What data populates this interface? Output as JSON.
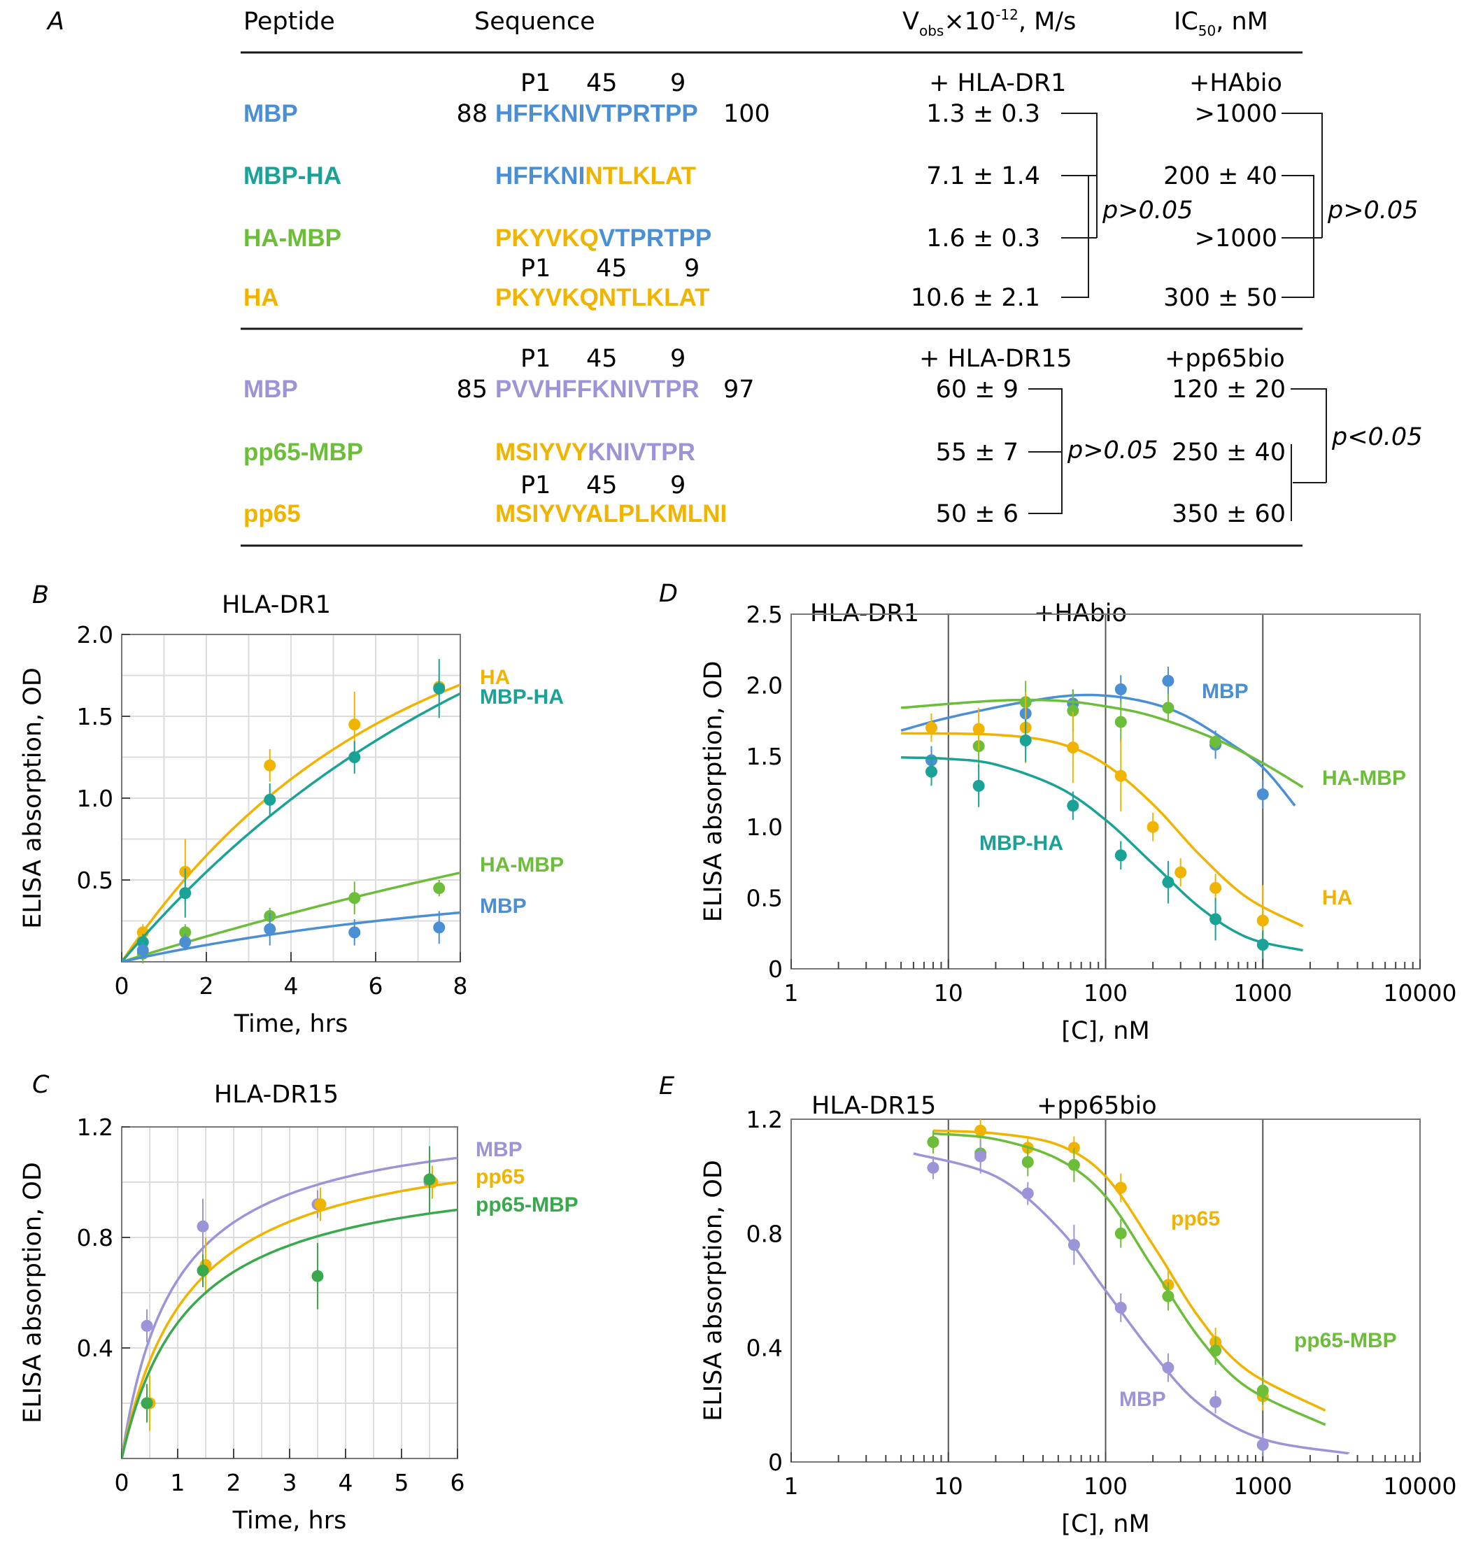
{
  "colors": {
    "mbp_blue": "#4a8fd4",
    "teal": "#1aa296",
    "green": "#6cbd3a",
    "green_dark": "#3aa84c",
    "yellow": "#f0b400",
    "lavender": "#9b95d8",
    "text": "#1a1a1a",
    "grid": "#dcdcdc"
  },
  "panel_a": {
    "letter": "A",
    "headers": {
      "peptide": "Peptide",
      "sequence": "Sequence",
      "vobs_pre": "V",
      "vobs_sub": "obs",
      "vobs_mid": "×10",
      "vobs_sup": "-12",
      "vobs_post": ", M/s",
      "ic50_pre": "IC",
      "ic50_sub": "50",
      "ic50_post": ", nM"
    },
    "top": {
      "anchors_1": {
        "p1": "P1",
        "p45": "45",
        "p9": "9"
      },
      "anchors_2": {
        "p1": "P1",
        "p45": "45",
        "p9": "9"
      },
      "vobs_header": "+ HLA-DR1",
      "ic50_header": "+HAbio",
      "rows": [
        {
          "name": "MBP",
          "color": "#4a8fd4",
          "start": "88",
          "end": "100",
          "seq_a": "HFFKNIVTPRTPP",
          "seq_a_color": "#4a8fd4",
          "seq_b": "",
          "seq_b_color": "#f0b400",
          "vobs": "1.3 ± 0.3",
          "ic50": ">1000"
        },
        {
          "name": "MBP-HA",
          "color": "#1aa296",
          "start": "",
          "end": "",
          "seq_a": "HFFKNI",
          "seq_a_color": "#4a8fd4",
          "seq_b": "NTLKLAT",
          "seq_b_color": "#f0b400",
          "vobs": "7.1 ± 1.4",
          "ic50": "200 ± 40"
        },
        {
          "name": "HA-MBP",
          "color": "#6cbd3a",
          "start": "",
          "end": "",
          "seq_a": "PKYVKQ",
          "seq_a_color": "#f0b400",
          "seq_b": "VTPRTPP",
          "seq_b_color": "#4a8fd4",
          "vobs": "1.6 ± 0.3",
          "ic50": ">1000"
        },
        {
          "name": "HA",
          "color": "#f0b400",
          "start": "",
          "end": "",
          "seq_a": "PKYVKQNTLKLAT",
          "seq_a_color": "#f0b400",
          "seq_b": "",
          "seq_b_color": "#f0b400",
          "vobs": "10.6 ± 2.1",
          "ic50": "300 ± 50"
        }
      ],
      "stat_vobs": "p>0.05",
      "stat_ic50": "p>0.05"
    },
    "bottom": {
      "anchors_1": {
        "p1": "P1",
        "p45": "45",
        "p9": "9"
      },
      "anchors_2": {
        "p1": "P1",
        "p45": "45",
        "p9": "9"
      },
      "vobs_header": "+ HLA-DR15",
      "ic50_header": "+pp65bio",
      "rows": [
        {
          "name": "MBP",
          "color": "#9b95d8",
          "start": "85",
          "end": "97",
          "seq_a": "PVVHFFKNIVTPR",
          "seq_a_color": "#9b95d8",
          "seq_b": "",
          "seq_b_color": "#f0b400",
          "vobs": "60 ± 9",
          "ic50": "120 ± 20"
        },
        {
          "name": "pp65-MBP",
          "color": "#6cbd3a",
          "start": "",
          "end": "",
          "seq_a": "MSIYVY",
          "seq_a_color": "#f0b400",
          "seq_b": "KNIVTPR",
          "seq_b_color": "#9b95d8",
          "vobs": "55 ± 7",
          "ic50": "250 ± 40"
        },
        {
          "name": "pp65",
          "color": "#f0b400",
          "start": "",
          "end": "",
          "seq_a": "MSIYVYALPLKMLNI",
          "seq_a_color": "#f0b400",
          "seq_b": "",
          "seq_b_color": "#f0b400",
          "vobs": "50 ± 6",
          "ic50": "350 ± 60"
        }
      ],
      "stat_vobs": "p>0.05",
      "stat_ic50": "p<0.05"
    }
  },
  "chart_data": [
    {
      "panel": "B",
      "type": "scatter",
      "title": "HLA-DR1",
      "xlabel": "Time, hrs",
      "ylabel": "ELISA absorption, OD",
      "xlim": [
        0,
        8
      ],
      "ylim": [
        0,
        2.0
      ],
      "xticks": [
        0,
        2,
        4,
        6,
        8
      ],
      "yticks": [
        0.5,
        1.0,
        1.5,
        2.0
      ],
      "ytick_labels": [
        "0.5",
        "1.0",
        "1.5",
        "2.0"
      ],
      "xscale": "linear",
      "grid": true,
      "series": [
        {
          "name": "HA",
          "color": "#f0b400",
          "x": [
            0.5,
            1.5,
            3.5,
            5.5,
            7.5
          ],
          "y": [
            0.18,
            0.55,
            1.2,
            1.45,
            1.68
          ],
          "err": [
            0.05,
            0.2,
            0.1,
            0.2,
            0.05
          ],
          "fit": {
            "kind": "exp",
            "A": 2.31,
            "k": 0.165
          }
        },
        {
          "name": "MBP-HA",
          "color": "#1aa296",
          "x": [
            0.5,
            1.5,
            3.5,
            5.5,
            7.5
          ],
          "y": [
            0.12,
            0.42,
            0.99,
            1.25,
            1.67
          ],
          "err": [
            0.05,
            0.15,
            0.1,
            0.1,
            0.18
          ],
          "fit": {
            "kind": "exp",
            "A": 2.85,
            "k": 0.107
          }
        },
        {
          "name": "HA-MBP",
          "color": "#6cbd3a",
          "x": [
            0.5,
            1.5,
            3.5,
            5.5,
            7.5
          ],
          "y": [
            0.05,
            0.18,
            0.28,
            0.39,
            0.45
          ],
          "err": [
            0.06,
            0.05,
            0.05,
            0.1,
            0.05
          ],
          "fit": {
            "kind": "exp",
            "A": 1.8,
            "k": 0.045
          }
        },
        {
          "name": "MBP",
          "color": "#4a8fd4",
          "x": [
            0.5,
            1.5,
            3.5,
            5.5,
            7.5
          ],
          "y": [
            0.07,
            0.12,
            0.2,
            0.18,
            0.21
          ],
          "err": [
            0.05,
            0.05,
            0.1,
            0.08,
            0.1
          ],
          "fit": {
            "kind": "exp",
            "A": 0.5,
            "k": 0.115
          }
        }
      ]
    },
    {
      "panel": "C",
      "type": "scatter",
      "title": "HLA-DR15",
      "xlabel": "Time, hrs",
      "ylabel": "ELISA absorption, OD",
      "xlim": [
        0,
        6
      ],
      "ylim": [
        0,
        1.2
      ],
      "xticks": [
        0,
        1,
        2,
        3,
        4,
        5,
        6
      ],
      "yticks": [
        0.4,
        0.8,
        1.2
      ],
      "ytick_labels": [
        "0.4",
        "0.8",
        "1.2"
      ],
      "xscale": "linear",
      "grid": true,
      "series": [
        {
          "name": "MBP",
          "color": "#9b95d8",
          "x": [
            0.45,
            1.45,
            3.5,
            5.5
          ],
          "y": [
            0.48,
            0.84,
            0.92,
            1.0
          ],
          "err": [
            0.06,
            0.1,
            0.05,
            0.05
          ],
          "fit": {
            "kind": "hyper",
            "A": 1.26,
            "K": 0.95
          }
        },
        {
          "name": "pp65",
          "color": "#f0b400",
          "x": [
            0.5,
            1.5,
            3.55,
            5.55
          ],
          "y": [
            0.2,
            0.7,
            0.92,
            1.0
          ],
          "err": [
            0.1,
            0.1,
            0.06,
            0.06
          ],
          "fit": {
            "kind": "hyper",
            "A": 1.2,
            "K": 1.2
          }
        },
        {
          "name": "pp65-MBP",
          "color": "#3aa84c",
          "x": [
            0.45,
            1.45,
            3.5,
            5.5
          ],
          "y": [
            0.2,
            0.68,
            0.66,
            1.01
          ],
          "err": [
            0.07,
            0.06,
            0.12,
            0.12
          ],
          "fit": {
            "kind": "hyper",
            "A": 1.08,
            "K": 1.2
          }
        }
      ]
    },
    {
      "panel": "D",
      "type": "scatter",
      "title": "HLA-DR1",
      "subtitle": "+HAbio",
      "xlabel": "[C], nM",
      "ylabel": "ELISA absorption, OD",
      "xlim": [
        1,
        10000
      ],
      "ylim": [
        0,
        2.5
      ],
      "xscale": "log",
      "xticks": [
        1,
        10,
        100,
        1000,
        10000
      ],
      "xtick_labels": [
        "1",
        "10",
        "100",
        "1000",
        "10000"
      ],
      "yticks": [
        0,
        0.5,
        1.0,
        1.5,
        2.0,
        2.5
      ],
      "ytick_labels": [
        "0",
        "0.5",
        "1.0",
        "1.5",
        "2.0",
        "2.5"
      ],
      "grid": false,
      "vlines": [
        10,
        100,
        1000
      ],
      "series": [
        {
          "name": "MBP",
          "color": "#4a8fd4",
          "x": [
            7.8,
            31,
            62,
            125,
            250,
            500,
            1000
          ],
          "y": [
            1.47,
            1.8,
            1.87,
            1.97,
            2.03,
            1.58,
            1.23
          ],
          "err": [
            0.1,
            0.1,
            0.1,
            0.1,
            0.1,
            0.1,
            0.1
          ],
          "curve": [
            [
              5,
              1.68
            ],
            [
              10,
              1.77
            ],
            [
              30,
              1.88
            ],
            [
              70,
              1.93
            ],
            [
              150,
              1.9
            ],
            [
              300,
              1.8
            ],
            [
              600,
              1.6
            ],
            [
              1000,
              1.42
            ],
            [
              1600,
              1.15
            ]
          ]
        },
        {
          "name": "HA-MBP",
          "color": "#6cbd3a",
          "x": [
            15.6,
            31,
            62,
            125,
            250,
            500
          ],
          "y": [
            1.57,
            1.88,
            1.82,
            1.74,
            1.84,
            1.6
          ],
          "err": [
            0.15,
            0.15,
            0.15,
            0.15,
            0.1,
            0.05
          ],
          "curve": [
            [
              5,
              1.84
            ],
            [
              20,
              1.89
            ],
            [
              50,
              1.89
            ],
            [
              100,
              1.85
            ],
            [
              200,
              1.78
            ],
            [
              500,
              1.62
            ],
            [
              1000,
              1.45
            ],
            [
              1800,
              1.28
            ]
          ]
        },
        {
          "name": "HA",
          "color": "#f0b400",
          "x": [
            7.8,
            15.6,
            31,
            62,
            125,
            200,
            300,
            500,
            1000
          ],
          "y": [
            1.7,
            1.69,
            1.7,
            1.56,
            1.36,
            1.0,
            0.68,
            0.57,
            0.34
          ],
          "err": [
            0.1,
            0.15,
            0.25,
            0.25,
            0.25,
            0.1,
            0.1,
            0.1,
            0.25
          ],
          "curve": [
            [
              5,
              1.66
            ],
            [
              20,
              1.65
            ],
            [
              50,
              1.59
            ],
            [
              100,
              1.44
            ],
            [
              200,
              1.16
            ],
            [
              400,
              0.8
            ],
            [
              800,
              0.5
            ],
            [
              1800,
              0.3
            ]
          ]
        },
        {
          "name": "MBP-HA",
          "color": "#1aa296",
          "x": [
            7.8,
            15.6,
            31,
            62,
            125,
            250,
            500,
            1000
          ],
          "y": [
            1.39,
            1.29,
            1.61,
            1.15,
            0.8,
            0.61,
            0.35,
            0.17
          ],
          "err": [
            0.1,
            0.15,
            0.15,
            0.1,
            0.1,
            0.15,
            0.15,
            0.1
          ],
          "curve": [
            [
              5,
              1.49
            ],
            [
              10,
              1.48
            ],
            [
              20,
              1.44
            ],
            [
              50,
              1.28
            ],
            [
              100,
              1.05
            ],
            [
              200,
              0.74
            ],
            [
              400,
              0.43
            ],
            [
              800,
              0.22
            ],
            [
              1800,
              0.13
            ]
          ]
        }
      ]
    },
    {
      "panel": "E",
      "type": "scatter",
      "title": "HLA-DR15",
      "subtitle": "+pp65bio",
      "xlabel": "[C], nM",
      "ylabel": "ELISA absorption, OD",
      "xlim": [
        1,
        10000
      ],
      "ylim": [
        0,
        1.2
      ],
      "xscale": "log",
      "xticks": [
        1,
        10,
        100,
        1000,
        10000
      ],
      "xtick_labels": [
        "1",
        "10",
        "100",
        "1000",
        "10000"
      ],
      "yticks": [
        0,
        0.4,
        0.8,
        1.2
      ],
      "ytick_labels": [
        "0",
        "0.4",
        "0.8",
        "1.2"
      ],
      "grid": false,
      "vlines": [
        10,
        100,
        1000
      ],
      "series": [
        {
          "name": "pp65",
          "color": "#f0b400",
          "x": [
            8,
            16,
            32,
            63,
            125,
            250,
            500,
            1000
          ],
          "y": [
            1.12,
            1.16,
            1.1,
            1.1,
            0.96,
            0.62,
            0.42,
            0.23
          ],
          "err": [
            0.04,
            0.04,
            0.04,
            0.04,
            0.05,
            0.05,
            0.05,
            0.05
          ],
          "curve": [
            [
              8,
              1.16
            ],
            [
              20,
              1.15
            ],
            [
              50,
              1.11
            ],
            [
              100,
              1.0
            ],
            [
              200,
              0.76
            ],
            [
              400,
              0.5
            ],
            [
              800,
              0.32
            ],
            [
              2500,
              0.18
            ]
          ]
        },
        {
          "name": "pp65-MBP",
          "color": "#6cbd3a",
          "x": [
            8,
            16,
            32,
            63,
            125,
            250,
            500,
            1000
          ],
          "y": [
            1.12,
            1.08,
            1.05,
            1.04,
            0.8,
            0.58,
            0.39,
            0.25
          ],
          "err": [
            0.04,
            0.04,
            0.05,
            0.06,
            0.05,
            0.05,
            0.05,
            0.05
          ],
          "curve": [
            [
              8,
              1.15
            ],
            [
              20,
              1.13
            ],
            [
              50,
              1.06
            ],
            [
              100,
              0.93
            ],
            [
              200,
              0.68
            ],
            [
              400,
              0.43
            ],
            [
              800,
              0.26
            ],
            [
              2500,
              0.13
            ]
          ]
        },
        {
          "name": "MBP",
          "color": "#9b95d8",
          "x": [
            8,
            16,
            32,
            63,
            125,
            250,
            500,
            1000
          ],
          "y": [
            1.03,
            1.07,
            0.94,
            0.76,
            0.54,
            0.33,
            0.21,
            0.06
          ],
          "err": [
            0.04,
            0.06,
            0.04,
            0.07,
            0.05,
            0.05,
            0.04,
            0.04
          ],
          "curve": [
            [
              6,
              1.08
            ],
            [
              20,
              1.0
            ],
            [
              50,
              0.82
            ],
            [
              100,
              0.6
            ],
            [
              200,
              0.38
            ],
            [
              400,
              0.2
            ],
            [
              1000,
              0.08
            ],
            [
              3500,
              0.03
            ]
          ]
        }
      ]
    }
  ],
  "chart_labels": {
    "B": {
      "letter": "B",
      "labels": [
        {
          "text": "HA",
          "color": "#f0b400"
        },
        {
          "text": "MBP-HA",
          "color": "#1aa296"
        },
        {
          "text": "HA-MBP",
          "color": "#6cbd3a"
        },
        {
          "text": "MBP",
          "color": "#4a8fd4"
        }
      ]
    },
    "C": {
      "letter": "C",
      "labels": [
        {
          "text": "MBP",
          "color": "#9b95d8"
        },
        {
          "text": "pp65",
          "color": "#f0b400"
        },
        {
          "text": "pp65-MBP",
          "color": "#3aa84c"
        }
      ]
    },
    "D": {
      "letter": "D",
      "labels": [
        {
          "text": "MBP",
          "color": "#4a8fd4"
        },
        {
          "text": "HA-MBP",
          "color": "#6cbd3a"
        },
        {
          "text": "MBP-HA",
          "color": "#1aa296"
        },
        {
          "text": "HA",
          "color": "#f0b400"
        }
      ]
    },
    "E": {
      "letter": "E",
      "labels": [
        {
          "text": "pp65",
          "color": "#f0b400"
        },
        {
          "text": "pp65-MBP",
          "color": "#6cbd3a"
        },
        {
          "text": "MBP",
          "color": "#9b95d8"
        }
      ]
    }
  }
}
